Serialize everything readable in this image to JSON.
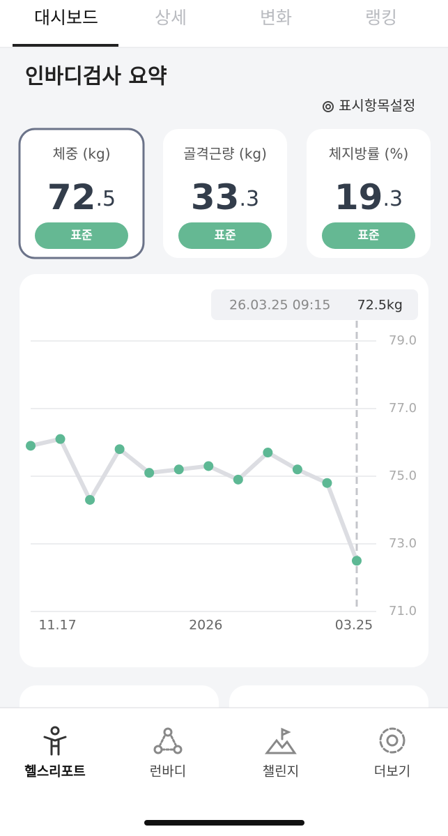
{
  "tabs": [
    {
      "label": "대시보드",
      "active": true
    },
    {
      "label": "상세",
      "active": false
    },
    {
      "label": "변화",
      "active": false
    },
    {
      "label": "랭킹",
      "active": false
    }
  ],
  "section_title": "인바디검사 요약",
  "settings_link": "표시항목설정",
  "cards": [
    {
      "title": "체중 (kg)",
      "value_main": "72",
      "value_decimal": ".5",
      "badge": "표준",
      "selected": true
    },
    {
      "title": "골격근량 (kg)",
      "value_main": "33",
      "value_decimal": ".3",
      "badge": "표준",
      "selected": false
    },
    {
      "title": "체지방률 (%)",
      "value_main": "19",
      "value_decimal": ".3",
      "badge": "표준",
      "selected": false
    }
  ],
  "chart_data": {
    "type": "line",
    "categories": [
      null,
      "11.17",
      null,
      null,
      null,
      null,
      "2026",
      null,
      null,
      null,
      null,
      "03.25"
    ],
    "series": [
      {
        "values": [
          75.9,
          76.1,
          74.3,
          75.8,
          75.1,
          75.2,
          75.3,
          74.9,
          75.7,
          75.2,
          74.8,
          72.5
        ],
        "color": "#5db894",
        "line_color": "#dcdde2"
      }
    ],
    "ylim": [
      71,
      79
    ],
    "yticks": [
      {
        "value": 71,
        "label": "71.0"
      },
      {
        "value": 73,
        "label": "73.0"
      },
      {
        "value": 75,
        "label": "75.0"
      },
      {
        "value": 77,
        "label": "77.0"
      },
      {
        "value": 79,
        "label": "79.0"
      }
    ],
    "grid": true,
    "tooltip": {
      "date": "26.03.25 09:15",
      "value": "72.5kg"
    }
  },
  "nav": [
    {
      "label": "헬스리포트",
      "active": true
    },
    {
      "label": "런바디",
      "active": false
    },
    {
      "label": "챌린지",
      "active": false
    },
    {
      "label": "더보기",
      "active": false
    }
  ]
}
